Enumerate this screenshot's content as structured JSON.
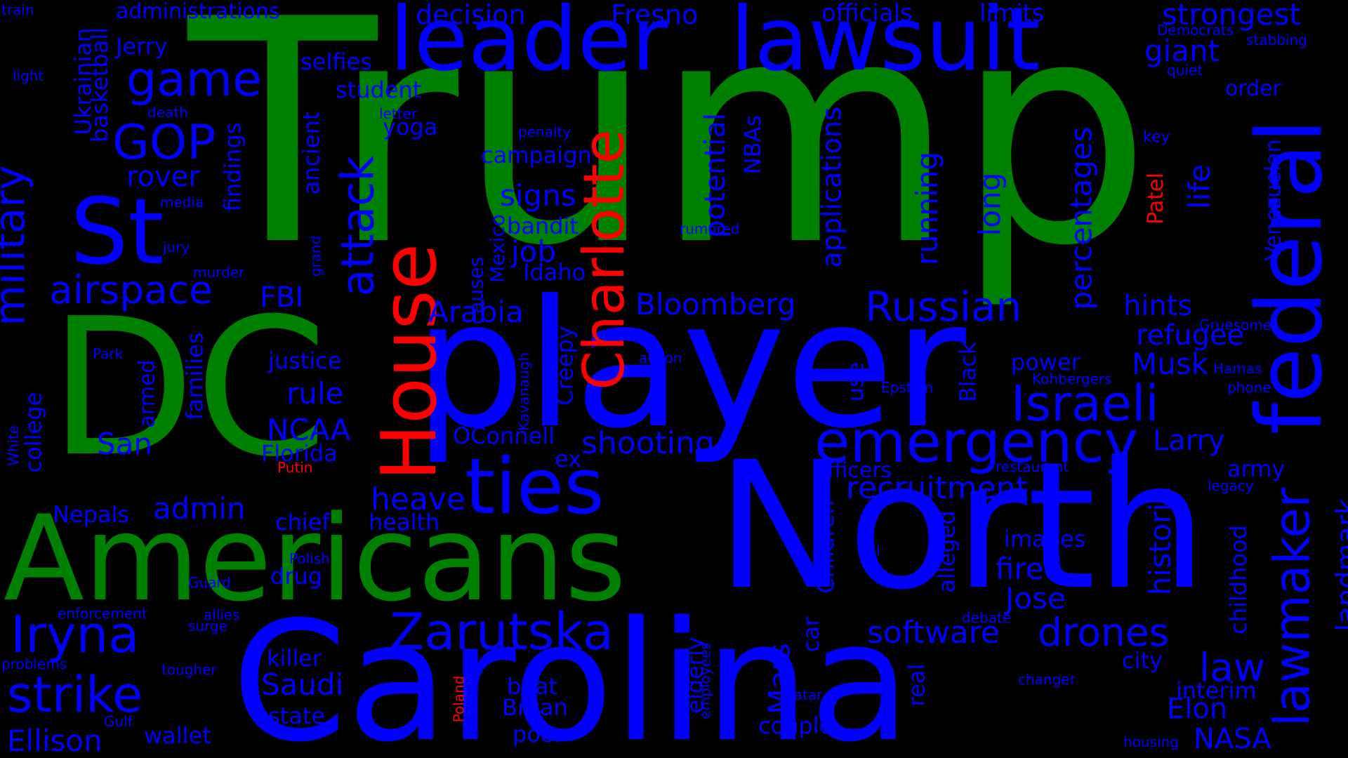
{
  "colors": {
    "background": "#000000",
    "blue": "#0000ff",
    "green": "#008000",
    "red": "#ff0000"
  },
  "words": [
    {
      "text": "Trump",
      "color": "green"
    },
    {
      "text": "DC",
      "color": "green"
    },
    {
      "text": "Americans",
      "color": "green"
    },
    {
      "text": "player",
      "color": "blue"
    },
    {
      "text": "North",
      "color": "blue"
    },
    {
      "text": "Carolina",
      "color": "blue"
    },
    {
      "text": "leader",
      "color": "blue"
    },
    {
      "text": "lawsuit",
      "color": "blue"
    },
    {
      "text": "federal",
      "color": "blue"
    },
    {
      "text": "St",
      "color": "blue"
    },
    {
      "text": "House",
      "color": "red"
    },
    {
      "text": "Charlotte",
      "color": "red"
    },
    {
      "text": "ties",
      "color": "blue"
    },
    {
      "text": "emergency",
      "color": "blue"
    },
    {
      "text": "Israeli",
      "color": "blue"
    },
    {
      "text": "lawmaker",
      "color": "blue"
    },
    {
      "text": "military",
      "color": "blue"
    },
    {
      "text": "Iryna",
      "color": "blue"
    },
    {
      "text": "Zarutska",
      "color": "blue"
    },
    {
      "text": "strike",
      "color": "blue"
    },
    {
      "text": "game",
      "color": "blue"
    },
    {
      "text": "GOP",
      "color": "blue"
    },
    {
      "text": "attack",
      "color": "blue"
    },
    {
      "text": "Russian",
      "color": "blue"
    },
    {
      "text": "airspace",
      "color": "blue"
    },
    {
      "text": "drones",
      "color": "blue"
    },
    {
      "text": "law",
      "color": "blue"
    },
    {
      "text": "shooting",
      "color": "blue"
    },
    {
      "text": "recruitment",
      "color": "blue"
    },
    {
      "text": "software",
      "color": "blue"
    },
    {
      "text": "Bloomberg",
      "color": "blue"
    },
    {
      "text": "decision",
      "color": "blue"
    },
    {
      "text": "Fresno",
      "color": "blue"
    },
    {
      "text": "officials",
      "color": "blue"
    },
    {
      "text": "limits",
      "color": "blue"
    },
    {
      "text": "strongest",
      "color": "blue"
    },
    {
      "text": "giant",
      "color": "blue"
    },
    {
      "text": "administrations",
      "color": "blue"
    },
    {
      "text": "Jerry",
      "color": "blue"
    },
    {
      "text": "selfies",
      "color": "blue"
    },
    {
      "text": "student",
      "color": "blue"
    },
    {
      "text": "yoga",
      "color": "blue"
    },
    {
      "text": "campaign",
      "color": "blue"
    },
    {
      "text": "signs",
      "color": "blue"
    },
    {
      "text": "bandit",
      "color": "blue"
    },
    {
      "text": "job",
      "color": "blue"
    },
    {
      "text": "Idaho",
      "color": "blue"
    },
    {
      "text": "rover",
      "color": "blue"
    },
    {
      "text": "FBI",
      "color": "blue"
    },
    {
      "text": "Arabia",
      "color": "blue"
    },
    {
      "text": "justice",
      "color": "blue"
    },
    {
      "text": "rule",
      "color": "blue"
    },
    {
      "text": "NCAA",
      "color": "blue"
    },
    {
      "text": "Florida",
      "color": "blue"
    },
    {
      "text": "San",
      "color": "blue"
    },
    {
      "text": "OConnell",
      "color": "blue"
    },
    {
      "text": "ex",
      "color": "blue"
    },
    {
      "text": "heave",
      "color": "blue"
    },
    {
      "text": "admin",
      "color": "blue"
    },
    {
      "text": "chief",
      "color": "blue"
    },
    {
      "text": "health",
      "color": "blue"
    },
    {
      "text": "Nepals",
      "color": "blue"
    },
    {
      "text": "drug",
      "color": "blue"
    },
    {
      "text": "killer",
      "color": "blue"
    },
    {
      "text": "Saudi",
      "color": "blue"
    },
    {
      "text": "state",
      "color": "blue"
    },
    {
      "text": "boat",
      "color": "blue"
    },
    {
      "text": "Bryan",
      "color": "blue"
    },
    {
      "text": "poor",
      "color": "blue"
    },
    {
      "text": "wallet",
      "color": "blue"
    },
    {
      "text": "Ellison",
      "color": "blue"
    },
    {
      "text": "couple",
      "color": "blue"
    },
    {
      "text": "order",
      "color": "blue"
    },
    {
      "text": "hints",
      "color": "blue"
    },
    {
      "text": "refugee",
      "color": "blue"
    },
    {
      "text": "Musk",
      "color": "blue"
    },
    {
      "text": "power",
      "color": "blue"
    },
    {
      "text": "Larry",
      "color": "blue"
    },
    {
      "text": "army",
      "color": "blue"
    },
    {
      "text": "officers",
      "color": "blue"
    },
    {
      "text": "images",
      "color": "blue"
    },
    {
      "text": "fired",
      "color": "blue"
    },
    {
      "text": "Jose",
      "color": "blue"
    },
    {
      "text": "city",
      "color": "blue"
    },
    {
      "text": "interim",
      "color": "blue"
    },
    {
      "text": "Elon",
      "color": "blue"
    },
    {
      "text": "NASA",
      "color": "blue"
    },
    {
      "text": "Democrats",
      "color": "blue"
    },
    {
      "text": "stabbing",
      "color": "blue"
    },
    {
      "text": "quiet",
      "color": "blue"
    },
    {
      "text": "key",
      "color": "blue"
    },
    {
      "text": "Gruesome",
      "color": "blue"
    },
    {
      "text": "Kohbergers",
      "color": "blue"
    },
    {
      "text": "Hamas",
      "color": "blue"
    },
    {
      "text": "phone",
      "color": "blue"
    },
    {
      "text": "Epstein",
      "color": "blue"
    },
    {
      "text": "restaurant",
      "color": "blue"
    },
    {
      "text": "legacy",
      "color": "blue"
    },
    {
      "text": "rail",
      "color": "blue"
    },
    {
      "text": "debate",
      "color": "blue"
    },
    {
      "text": "changer",
      "color": "blue"
    },
    {
      "text": "housing",
      "color": "blue"
    },
    {
      "text": "Qatar",
      "color": "blue"
    },
    {
      "text": "action",
      "color": "blue"
    },
    {
      "text": "rumored",
      "color": "blue"
    },
    {
      "text": "penalty",
      "color": "blue"
    },
    {
      "text": "letter",
      "color": "blue"
    },
    {
      "text": "media",
      "color": "blue"
    },
    {
      "text": "jury",
      "color": "blue"
    },
    {
      "text": "murder",
      "color": "blue"
    },
    {
      "text": "death",
      "color": "blue"
    },
    {
      "text": "light",
      "color": "blue"
    },
    {
      "text": "train",
      "color": "blue"
    },
    {
      "text": "Park",
      "color": "blue"
    },
    {
      "text": "Guard",
      "color": "blue"
    },
    {
      "text": "Polish",
      "color": "blue"
    },
    {
      "text": "enforcement",
      "color": "blue"
    },
    {
      "text": "allies",
      "color": "blue"
    },
    {
      "text": "surge",
      "color": "blue"
    },
    {
      "text": "problems",
      "color": "blue"
    },
    {
      "text": "tougher",
      "color": "blue"
    },
    {
      "text": "Gulf",
      "color": "blue"
    },
    {
      "text": "Putin",
      "color": "red"
    },
    {
      "text": "Patel",
      "color": "red"
    },
    {
      "text": "Poland",
      "color": "red"
    },
    {
      "text": "Ukrainian",
      "color": "blue"
    },
    {
      "text": "basketball",
      "color": "blue"
    },
    {
      "text": "findings",
      "color": "blue"
    },
    {
      "text": "families",
      "color": "blue"
    },
    {
      "text": "armed",
      "color": "blue"
    },
    {
      "text": "college",
      "color": "blue"
    },
    {
      "text": "White",
      "color": "blue"
    },
    {
      "text": "grand",
      "color": "blue"
    },
    {
      "text": "ancient",
      "color": "blue"
    },
    {
      "text": "Mexico",
      "color": "blue"
    },
    {
      "text": "causes",
      "color": "blue"
    },
    {
      "text": "Creepy",
      "color": "blue"
    },
    {
      "text": "Kavanaugh",
      "color": "blue"
    },
    {
      "text": "potential",
      "color": "blue"
    },
    {
      "text": "NBAs",
      "color": "blue"
    },
    {
      "text": "applications",
      "color": "blue"
    },
    {
      "text": "running",
      "color": "blue"
    },
    {
      "text": "long",
      "color": "blue"
    },
    {
      "text": "percentages",
      "color": "blue"
    },
    {
      "text": "life",
      "color": "blue"
    },
    {
      "text": "Venezuelan",
      "color": "blue"
    },
    {
      "text": "use",
      "color": "blue"
    },
    {
      "text": "Black",
      "color": "blue"
    },
    {
      "text": "Children",
      "color": "blue"
    },
    {
      "text": "alleged",
      "color": "blue"
    },
    {
      "text": "historic",
      "color": "blue"
    },
    {
      "text": "childhood",
      "color": "blue"
    },
    {
      "text": "landmark",
      "color": "blue"
    },
    {
      "text": "elderly",
      "color": "blue"
    },
    {
      "text": "employees",
      "color": "blue"
    },
    {
      "text": "Mars",
      "color": "blue"
    },
    {
      "text": "car",
      "color": "blue"
    },
    {
      "text": "real",
      "color": "blue"
    }
  ]
}
